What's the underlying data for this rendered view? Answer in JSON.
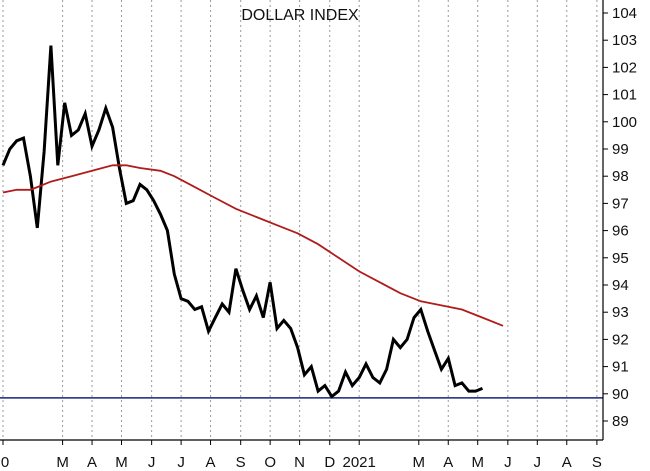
{
  "chart_data": {
    "type": "line",
    "title": "DOLLAR INDEX",
    "xlabel": "",
    "ylabel": "",
    "ylim": [
      88,
      104.4
    ],
    "y_ticks": [
      89,
      90,
      91,
      92,
      93,
      94,
      95,
      96,
      97,
      98,
      99,
      100,
      101,
      102,
      103,
      104
    ],
    "y_axis_position": "right",
    "grid": "vertical dotted",
    "x_ticks": [
      {
        "label": "0",
        "week": 0
      },
      {
        "label": "M",
        "week": 8.7
      },
      {
        "label": "A",
        "week": 13
      },
      {
        "label": "M",
        "week": 17.3
      },
      {
        "label": "J",
        "week": 21.7
      },
      {
        "label": "J",
        "week": 26
      },
      {
        "label": "A",
        "week": 30.3
      },
      {
        "label": "S",
        "week": 34.7
      },
      {
        "label": "O",
        "week": 39
      },
      {
        "label": "N",
        "week": 43.3
      },
      {
        "label": "D",
        "week": 47.7
      },
      {
        "label": "2021",
        "week": 52
      },
      {
        "label": "M",
        "week": 60.7
      },
      {
        "label": "A",
        "week": 65
      },
      {
        "label": "M",
        "week": 69.3
      },
      {
        "label": "J",
        "week": 73.7
      },
      {
        "label": "J",
        "week": 78
      },
      {
        "label": "A",
        "week": 82.3
      },
      {
        "label": "S",
        "week": 86.7
      }
    ],
    "series": [
      {
        "color": "#000000",
        "points": [
          [
            0,
            98.4
          ],
          [
            1,
            99.0
          ],
          [
            2,
            99.3
          ],
          [
            3,
            99.4
          ],
          [
            4,
            98.0
          ],
          [
            5,
            96.1
          ],
          [
            6,
            98.9
          ],
          [
            7,
            102.8
          ],
          [
            8,
            98.4
          ],
          [
            9,
            100.7
          ],
          [
            10,
            99.5
          ],
          [
            11,
            99.7
          ],
          [
            12,
            100.3
          ],
          [
            13,
            99.1
          ],
          [
            14,
            99.7
          ],
          [
            15,
            100.5
          ],
          [
            16,
            99.8
          ],
          [
            17,
            98.3
          ],
          [
            18,
            97.0
          ],
          [
            19,
            97.1
          ],
          [
            20,
            97.7
          ],
          [
            21,
            97.5
          ],
          [
            22,
            97.1
          ],
          [
            23,
            96.6
          ],
          [
            24,
            96.0
          ],
          [
            25,
            94.4
          ],
          [
            26,
            93.5
          ],
          [
            27,
            93.4
          ],
          [
            28,
            93.1
          ],
          [
            29,
            93.2
          ],
          [
            30,
            92.3
          ],
          [
            31,
            92.8
          ],
          [
            32,
            93.3
          ],
          [
            33,
            93.0
          ],
          [
            34,
            94.6
          ],
          [
            35,
            93.8
          ],
          [
            36,
            93.1
          ],
          [
            37,
            93.6
          ],
          [
            38,
            92.8
          ],
          [
            39,
            94.1
          ],
          [
            40,
            92.4
          ],
          [
            41,
            92.7
          ],
          [
            42,
            92.4
          ],
          [
            43,
            91.7
          ],
          [
            44,
            90.7
          ],
          [
            45,
            91.0
          ],
          [
            46,
            90.1
          ],
          [
            47,
            90.3
          ],
          [
            48,
            89.9
          ],
          [
            49,
            90.1
          ],
          [
            50,
            90.8
          ],
          [
            51,
            90.3
          ],
          [
            52,
            90.6
          ],
          [
            53,
            91.1
          ],
          [
            54,
            90.6
          ],
          [
            55,
            90.4
          ],
          [
            56,
            90.9
          ],
          [
            57,
            92.0
          ],
          [
            58,
            91.7
          ],
          [
            59,
            92.0
          ],
          [
            60,
            92.8
          ],
          [
            61,
            93.1
          ],
          [
            62,
            92.3
          ],
          [
            63,
            91.6
          ],
          [
            64,
            90.9
          ],
          [
            65,
            91.3
          ],
          [
            66,
            90.3
          ],
          [
            67,
            90.4
          ],
          [
            68,
            90.1
          ],
          [
            69,
            90.1
          ],
          [
            70,
            90.2
          ]
        ]
      },
      {
        "color": "#b01c1c",
        "points": [
          [
            0,
            97.4
          ],
          [
            2,
            97.5
          ],
          [
            4,
            97.5
          ],
          [
            5,
            97.6
          ],
          [
            7,
            97.8
          ],
          [
            10,
            98.0
          ],
          [
            13,
            98.2
          ],
          [
            16,
            98.4
          ],
          [
            18,
            98.4
          ],
          [
            20,
            98.3
          ],
          [
            23,
            98.2
          ],
          [
            25,
            98.0
          ],
          [
            28,
            97.6
          ],
          [
            31,
            97.2
          ],
          [
            34,
            96.8
          ],
          [
            37,
            96.5
          ],
          [
            40,
            96.2
          ],
          [
            43,
            95.9
          ],
          [
            46,
            95.5
          ],
          [
            49,
            95.0
          ],
          [
            52,
            94.5
          ],
          [
            55,
            94.1
          ],
          [
            58,
            93.7
          ],
          [
            61,
            93.4
          ],
          [
            64,
            93.25
          ],
          [
            67,
            93.1
          ],
          [
            70,
            92.8
          ],
          [
            73,
            92.5
          ]
        ]
      }
    ],
    "reference_lines": [
      {
        "y": 89.85,
        "color": "#1a237e"
      }
    ]
  }
}
